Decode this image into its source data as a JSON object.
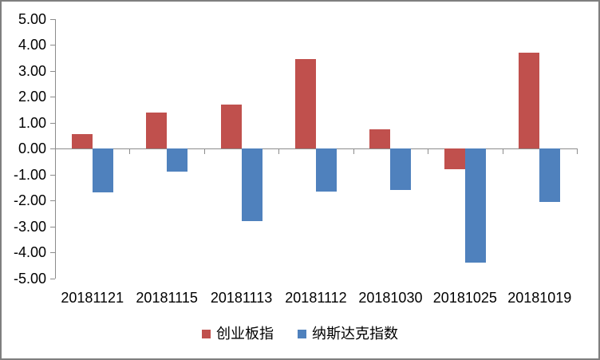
{
  "chart_data": {
    "type": "bar",
    "title": "",
    "xlabel": "",
    "ylabel": "",
    "categories": [
      "20181121",
      "20181115",
      "20181113",
      "20181112",
      "20181030",
      "20181025",
      "20181019"
    ],
    "series": [
      {
        "name": "创业板指",
        "color": "#C0504D",
        "values": [
          0.55,
          1.4,
          1.7,
          3.45,
          0.75,
          -0.8,
          3.7
        ]
      },
      {
        "name": "纳斯达克指数",
        "color": "#4F81BD",
        "values": [
          -1.7,
          -0.9,
          -2.8,
          -1.65,
          -1.6,
          -4.4,
          -2.05
        ]
      }
    ],
    "ylim": [
      -5.0,
      5.0
    ],
    "ytick_step": 1.0,
    "ytick_decimals": 2,
    "grid": false,
    "legend_position": "bottom",
    "axis_color": "#8c8c8c",
    "text_color": "#000000",
    "background_color": "#ffffff",
    "frame_color": "#7f7f7f"
  }
}
